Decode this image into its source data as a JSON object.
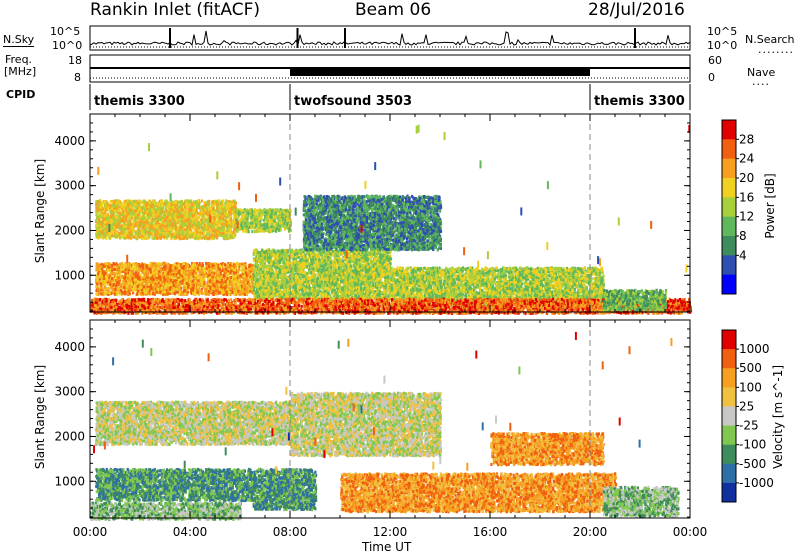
{
  "header": {
    "station": "Rankin Inlet (fitACF)",
    "beam": "Beam 06",
    "date": "28/Jul/2016"
  },
  "top_panel": {
    "left_label": "N.Sky",
    "right_label": "N.Search",
    "left_ticks": [
      "10^5",
      "10^0"
    ],
    "right_ticks": [
      "10^5",
      "10^0"
    ]
  },
  "freq_panel": {
    "left_label_line1": "Freq.",
    "left_label_line2": "[MHz]",
    "left_ticks": [
      "18",
      "8"
    ],
    "right_label": "Nave",
    "right_ticks": [
      "60",
      "0"
    ]
  },
  "cpid": {
    "label": "CPID",
    "segments": [
      {
        "name": "themis 3300",
        "start_h": 0,
        "end_h": 8
      },
      {
        "name": "twofsound 3503",
        "start_h": 8,
        "end_h": 20
      },
      {
        "name": "themis 3300",
        "start_h": 20,
        "end_h": 24
      }
    ]
  },
  "x_axis": {
    "title": "Time UT",
    "ticks": [
      "00:00",
      "04:00",
      "08:00",
      "12:00",
      "16:00",
      "20:00",
      "00:00"
    ],
    "range_h": [
      0,
      24
    ]
  },
  "chart_data": [
    {
      "type": "heatmap",
      "name": "power",
      "ylabel": "Slant Range [km]",
      "yticks": [
        1000,
        2000,
        3000,
        4000
      ],
      "ylim": [
        180,
        4600
      ],
      "colorbar_label": "Power [dB]",
      "colorbar_ticks": [
        "28",
        "24",
        "20",
        "16",
        "12",
        "8",
        "4"
      ],
      "colors": [
        "#0000ff",
        "#2f4fb0",
        "#3e8b5c",
        "#5fb85c",
        "#a8cf3c",
        "#f0d020",
        "#f7a020",
        "#f06010",
        "#e00000"
      ],
      "bands": [
        {
          "start_h": 0.2,
          "end_h": 5.8,
          "low_km": 1850,
          "high_km": 2700,
          "level": 5
        },
        {
          "start_h": 5.8,
          "end_h": 8.0,
          "low_km": 2000,
          "high_km": 2500,
          "level": 4
        },
        {
          "start_h": 0.2,
          "end_h": 6.5,
          "low_km": 600,
          "high_km": 1300,
          "level": 6
        },
        {
          "start_h": 6.5,
          "end_h": 12.0,
          "low_km": 500,
          "high_km": 1600,
          "level": 4
        },
        {
          "start_h": 12.0,
          "end_h": 20.5,
          "low_km": 350,
          "high_km": 1200,
          "level": 4
        },
        {
          "start_h": 0.0,
          "end_h": 24.0,
          "low_km": 180,
          "high_km": 500,
          "level": 7
        },
        {
          "start_h": 8.5,
          "end_h": 14.0,
          "low_km": 1600,
          "high_km": 2800,
          "level": 2
        },
        {
          "start_h": 20.5,
          "end_h": 23.0,
          "low_km": 250,
          "high_km": 700,
          "level": 3
        }
      ]
    },
    {
      "type": "heatmap",
      "name": "velocity",
      "ylabel": "Slant Range [km]",
      "yticks": [
        1000,
        2000,
        3000,
        4000
      ],
      "ylim": [
        180,
        4600
      ],
      "colorbar_label": "Velocity [m s^-1]",
      "colorbar_ticks": [
        "1000",
        "500",
        "100",
        "25",
        "-25",
        "-100",
        "-500",
        "-1000"
      ],
      "colors": [
        "#1030a0",
        "#2f6fa8",
        "#3e8b5c",
        "#80c850",
        "#c8c8c4",
        "#f0c040",
        "#f7a020",
        "#f06010",
        "#e00000"
      ],
      "bands": [
        {
          "start_h": 0.2,
          "end_h": 8.0,
          "low_km": 1850,
          "high_km": 2800,
          "level": 4
        },
        {
          "start_h": 8.0,
          "end_h": 14.0,
          "low_km": 1600,
          "high_km": 3000,
          "level": 4
        },
        {
          "start_h": 0.2,
          "end_h": 6.5,
          "low_km": 600,
          "high_km": 1300,
          "level": 2
        },
        {
          "start_h": 6.5,
          "end_h": 9.0,
          "low_km": 400,
          "high_km": 1300,
          "level": 2
        },
        {
          "start_h": 10.0,
          "end_h": 21.0,
          "low_km": 350,
          "high_km": 1200,
          "level": 6
        },
        {
          "start_h": 0.0,
          "end_h": 6.0,
          "low_km": 180,
          "high_km": 550,
          "level": 3
        },
        {
          "start_h": 16.0,
          "end_h": 20.5,
          "low_km": 1400,
          "high_km": 2100,
          "level": 6
        },
        {
          "start_h": 20.5,
          "end_h": 23.5,
          "low_km": 250,
          "high_km": 900,
          "level": 3
        }
      ]
    }
  ]
}
